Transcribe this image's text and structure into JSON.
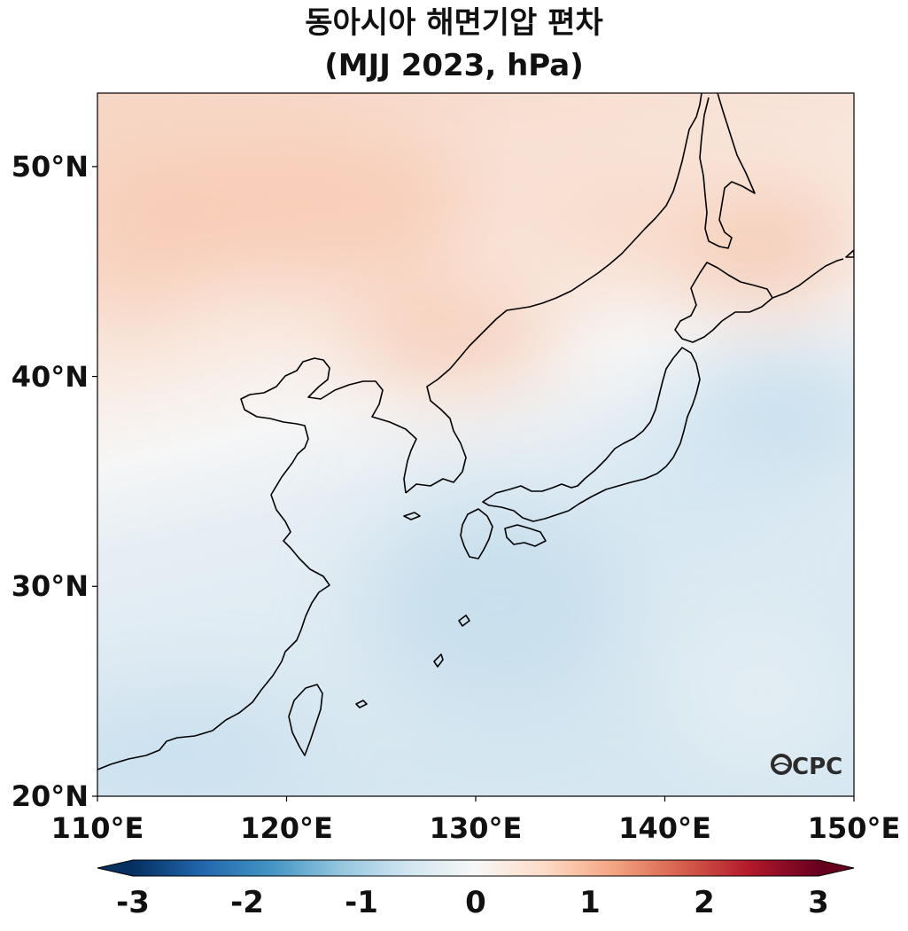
{
  "title": {
    "line1": "동아시아 해면기압 편차",
    "line2": "(MJJ 2023, hPa)"
  },
  "map": {
    "lon_range": [
      110,
      150
    ],
    "lat_range": [
      20,
      53.5
    ],
    "lat_ticks": [
      {
        "value": 50,
        "label": "50°N"
      },
      {
        "value": 40,
        "label": "40°N"
      },
      {
        "value": 30,
        "label": "30°N"
      },
      {
        "value": 20,
        "label": "20°N"
      }
    ],
    "lon_ticks": [
      {
        "value": 110,
        "label": "110°E"
      },
      {
        "value": 120,
        "label": "120°E"
      },
      {
        "value": 130,
        "label": "130°E"
      },
      {
        "value": 140,
        "label": "140°E"
      },
      {
        "value": 150,
        "label": "150°E"
      }
    ],
    "field_description": "positive anomalies north of ~38N (China, Korea, Manchuria), negative anomalies south over East China Sea, southern Japan and Pacific",
    "logo": "OCPC"
  },
  "colorbar": {
    "colormap": "RdBu_r",
    "range": [
      -3,
      3
    ],
    "ticks": [
      {
        "value": -3,
        "label": "-3"
      },
      {
        "value": -2,
        "label": "-2"
      },
      {
        "value": -1,
        "label": "-1"
      },
      {
        "value": 0,
        "label": "0"
      },
      {
        "value": 1,
        "label": "1"
      },
      {
        "value": 2,
        "label": "2"
      },
      {
        "value": 3,
        "label": "3"
      }
    ],
    "extend": "both",
    "colors": [
      "#053061",
      "#2166ac",
      "#4393c3",
      "#92c5de",
      "#d1e5f0",
      "#f7f7f7",
      "#fddbc7",
      "#f4a582",
      "#d6604d",
      "#b2182b",
      "#67001f"
    ]
  }
}
